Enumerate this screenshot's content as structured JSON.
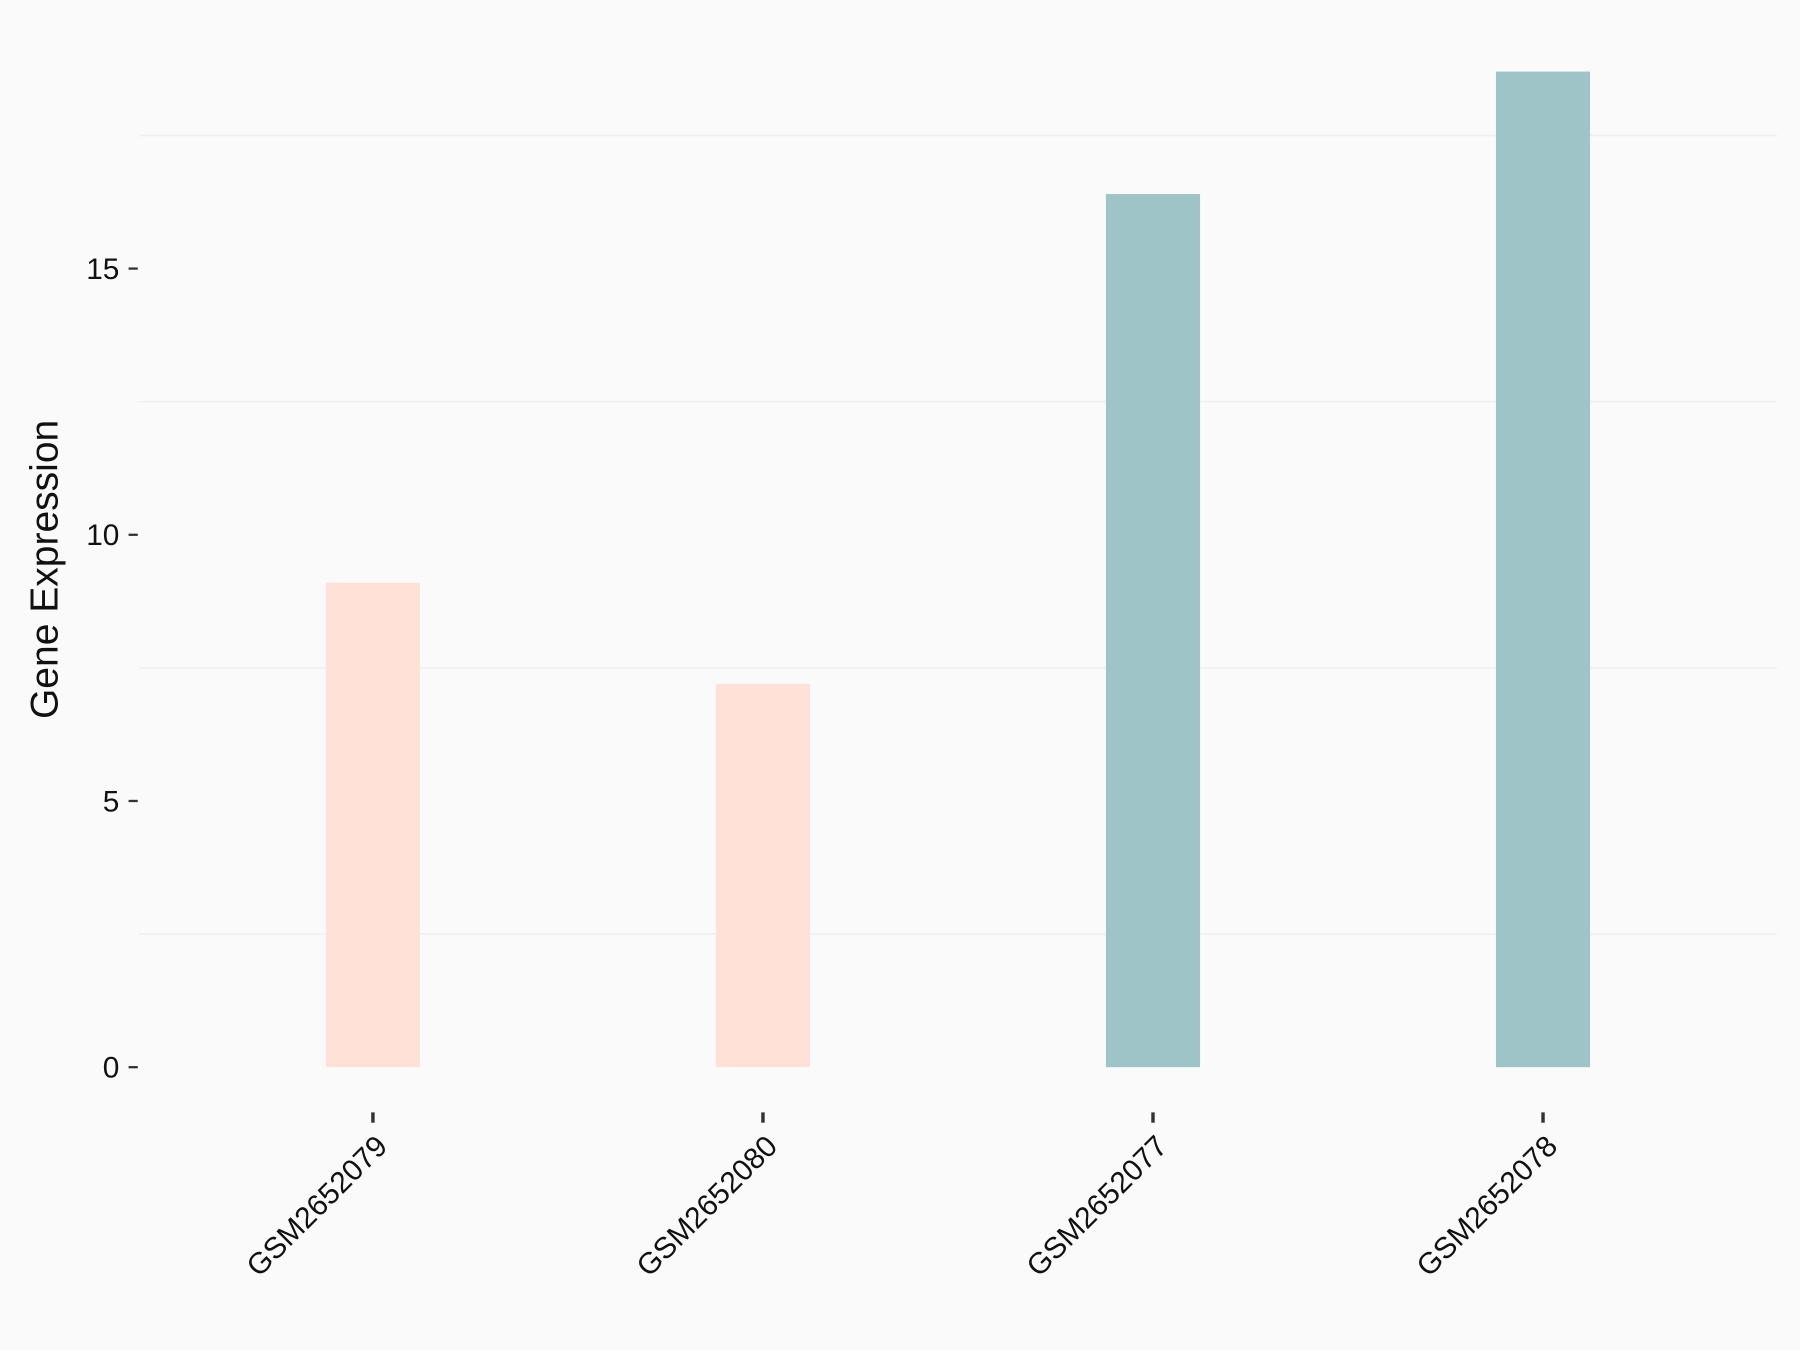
{
  "chart_data": {
    "type": "bar",
    "y_label": "Gene Expression",
    "categories": [
      "GSM2652079",
      "GSM2652080",
      "GSM2652077",
      "GSM2652078"
    ],
    "values": [
      9.1,
      7.2,
      16.4,
      18.7
    ],
    "colors": [
      "#ffe1d7",
      "#ffe1d7",
      "#9ec4c8",
      "#9ec4c8"
    ],
    "ylim": [
      -0.935,
      19.635
    ],
    "yticks": [
      0,
      5,
      10,
      15
    ],
    "minor_yticks": [
      2.5,
      7.5,
      12.5,
      17.5
    ],
    "grid": true
  }
}
